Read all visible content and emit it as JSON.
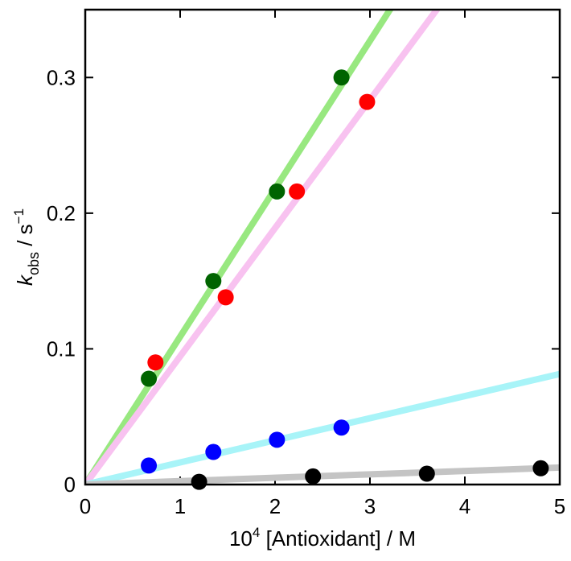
{
  "chart_data": {
    "type": "scatter",
    "xlabel_base": "10",
    "xlabel_exp": "4",
    "xlabel_rest": " [Antioxidant] / M",
    "ylabel_k": "k",
    "ylabel_sub": "obs",
    "ylabel_unit": " / s",
    "ylabel_exp": "−1",
    "xlim": [
      0,
      5
    ],
    "ylim": [
      0,
      0.35
    ],
    "xticks": [
      0,
      1,
      2,
      3,
      4,
      5
    ],
    "xtick_labels": [
      "0",
      "1",
      "2",
      "3",
      "4",
      "5"
    ],
    "yticks": [
      0,
      0.1,
      0.2,
      0.3
    ],
    "ytick_labels": [
      "0",
      "0.1",
      "0.2",
      "0.3"
    ],
    "series": [
      {
        "marker_color": "#006400",
        "line_color": "#98e880",
        "slope": 0.109,
        "x": [
          0.67,
          1.35,
          2.02,
          2.7
        ],
        "y": [
          0.078,
          0.15,
          0.216,
          0.3
        ]
      },
      {
        "marker_color": "#ff0000",
        "line_color": "#f8c2f0",
        "slope": 0.0945,
        "x": [
          0.74,
          1.48,
          2.23,
          2.97
        ],
        "y": [
          0.09,
          0.138,
          0.216,
          0.282
        ]
      },
      {
        "marker_color": "#0000ff",
        "line_color": "#a8f4f8",
        "slope": 0.0163,
        "x": [
          0.67,
          1.35,
          2.02,
          2.7
        ],
        "y": [
          0.014,
          0.024,
          0.033,
          0.042
        ]
      },
      {
        "marker_color": "#000000",
        "line_color": "#c4c4c4",
        "slope": 0.0025,
        "x": [
          1.2,
          2.4,
          3.6,
          4.8
        ],
        "y": [
          0.002,
          0.006,
          0.008,
          0.012
        ]
      }
    ]
  }
}
